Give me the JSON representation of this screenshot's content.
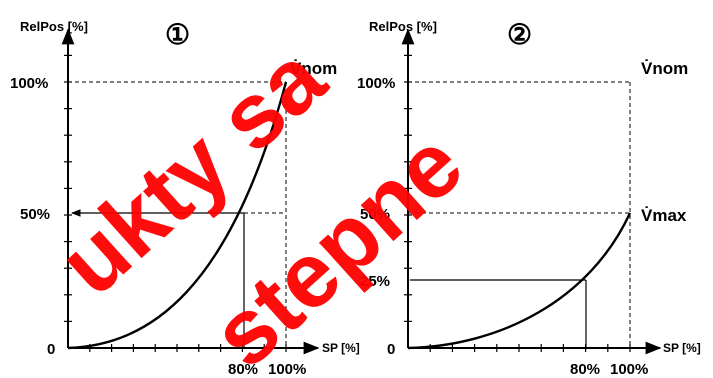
{
  "chart_data": [
    {
      "type": "line",
      "badge": "①",
      "ylabel": "RelPos [%]",
      "xlabel": "SP [%]",
      "y_ticks": [
        "100%",
        "50%"
      ],
      "y_zero": "0",
      "x_ticks": [
        "80%",
        "100%"
      ],
      "curve_label": "V̇nom",
      "xlim": [
        0,
        100
      ],
      "ylim": [
        0,
        100
      ],
      "points": [
        [
          0,
          0
        ],
        [
          10,
          1
        ],
        [
          20,
          3
        ],
        [
          30,
          7
        ],
        [
          40,
          12
        ],
        [
          50,
          18
        ],
        [
          60,
          27
        ],
        [
          70,
          37
        ],
        [
          80,
          50
        ],
        [
          90,
          70
        ],
        [
          100,
          100
        ]
      ],
      "marker": {
        "x": 80,
        "y": 50
      }
    },
    {
      "type": "line",
      "badge": "②",
      "ylabel": "RelPos [%]",
      "xlabel": "SP [%]",
      "y_ticks": [
        "100%",
        "50%",
        "25%"
      ],
      "y_zero": "0",
      "x_ticks": [
        "80%",
        "100%"
      ],
      "curve_label_top": "V̇nom",
      "curve_label": "V̇max",
      "xlim": [
        0,
        100
      ],
      "ylim": [
        0,
        100
      ],
      "points": [
        [
          0,
          0
        ],
        [
          10,
          0.5
        ],
        [
          20,
          1.5
        ],
        [
          30,
          3.5
        ],
        [
          40,
          6
        ],
        [
          50,
          9
        ],
        [
          60,
          13.5
        ],
        [
          70,
          19
        ],
        [
          80,
          25
        ],
        [
          90,
          35
        ],
        [
          100,
          50
        ]
      ],
      "marker": {
        "x": 80,
        "y": 25
      }
    }
  ],
  "watermark": [
    "ukty sa",
    "stepne"
  ]
}
